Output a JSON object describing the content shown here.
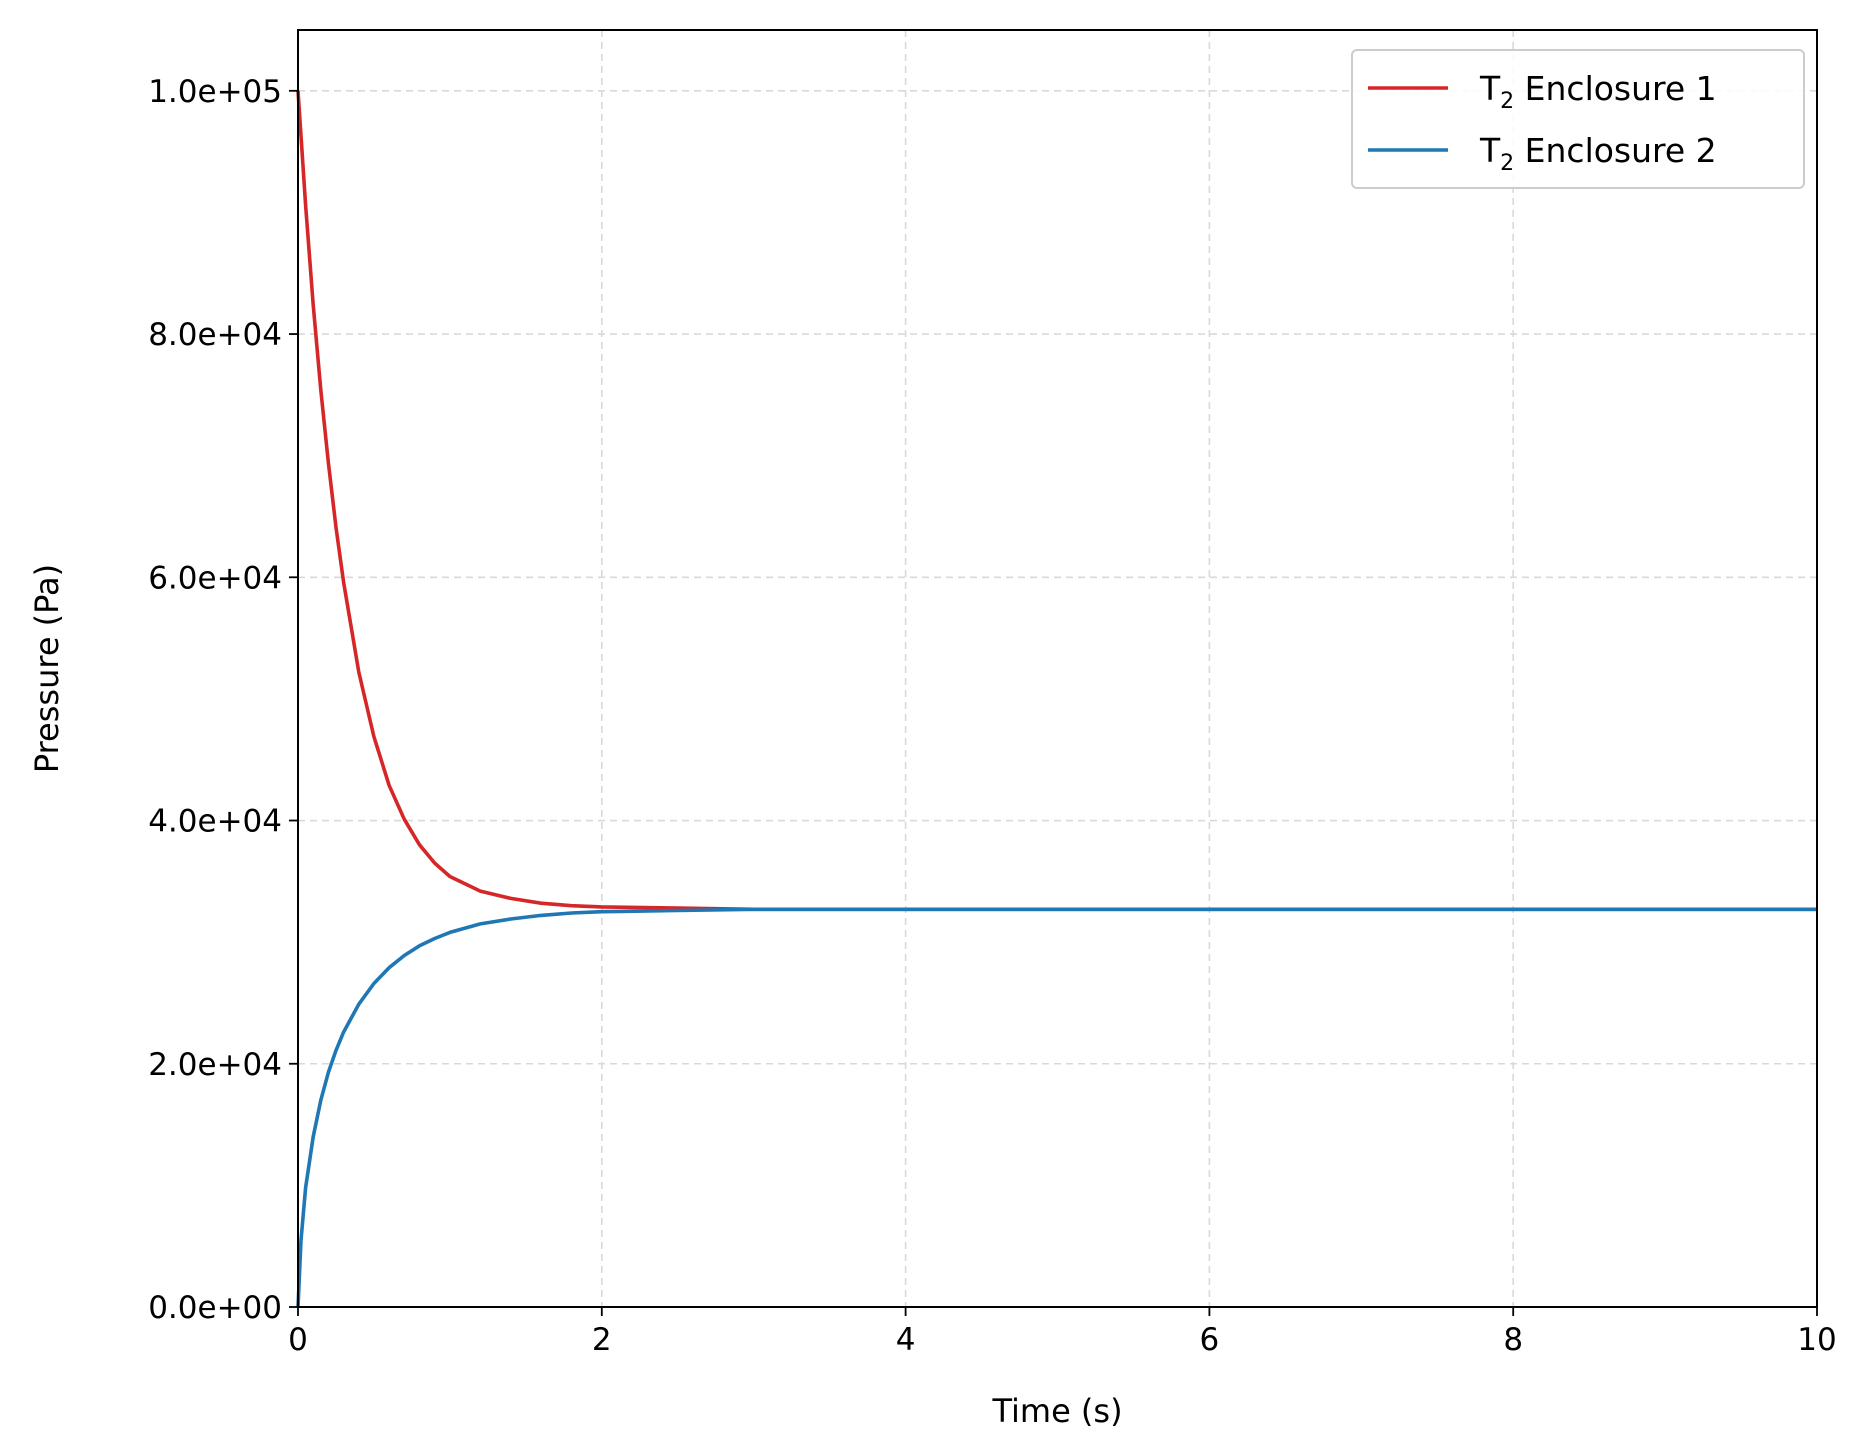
{
  "chart_data": {
    "type": "line",
    "title": "",
    "xlabel": "Time (s)",
    "ylabel": "Pressure (Pa)",
    "xlim": [
      0,
      10
    ],
    "ylim": [
      0,
      105000
    ],
    "xticks": [
      0,
      2,
      4,
      6,
      8,
      10
    ],
    "xtick_labels": [
      "0",
      "2",
      "4",
      "6",
      "8",
      "10"
    ],
    "yticks": [
      0,
      20000,
      40000,
      60000,
      80000,
      100000
    ],
    "ytick_labels": [
      "0.0e+00",
      "2.0e+04",
      "4.0e+04",
      "6.0e+04",
      "8.0e+04",
      "1.0e+05"
    ],
    "grid": true,
    "legend_position": "top-right",
    "series": [
      {
        "name": "T2 Enclosure 1",
        "label_main": "T",
        "label_sub": "2",
        "label_rest": " Enclosure 1",
        "color": "#d62728",
        "x": [
          0,
          0.05,
          0.1,
          0.15,
          0.2,
          0.25,
          0.3,
          0.4,
          0.5,
          0.6,
          0.7,
          0.8,
          0.9,
          1.0,
          1.2,
          1.4,
          1.6,
          1.8,
          2.0,
          2.5,
          3.0,
          4.0,
          5.0,
          6.0,
          7.0,
          8.0,
          9.0,
          10.0
        ],
        "y": [
          100000,
          90600,
          82400,
          75400,
          69400,
          64100,
          59600,
          52200,
          46900,
          42900,
          40100,
          38000,
          36500,
          35400,
          34200,
          33600,
          33200,
          33000,
          32900,
          32800,
          32700,
          32700,
          32700,
          32700,
          32700,
          32700,
          32700,
          32700
        ]
      },
      {
        "name": "T2 Enclosure 2",
        "label_main": "T",
        "label_sub": "2",
        "label_rest": " Enclosure 2",
        "color": "#1f77b4",
        "x": [
          0,
          0.02,
          0.05,
          0.1,
          0.15,
          0.2,
          0.25,
          0.3,
          0.4,
          0.5,
          0.6,
          0.7,
          0.8,
          0.9,
          1.0,
          1.2,
          1.4,
          1.6,
          1.8,
          2.0,
          2.5,
          3.0,
          4.0,
          5.0,
          6.0,
          7.0,
          8.0,
          9.0,
          10.0
        ],
        "y": [
          0,
          5500,
          9800,
          14000,
          17000,
          19300,
          21100,
          22600,
          24900,
          26600,
          27900,
          28900,
          29700,
          30300,
          30800,
          31500,
          31900,
          32200,
          32400,
          32500,
          32600,
          32700,
          32700,
          32700,
          32700,
          32700,
          32700,
          32700,
          32700
        ]
      }
    ]
  }
}
